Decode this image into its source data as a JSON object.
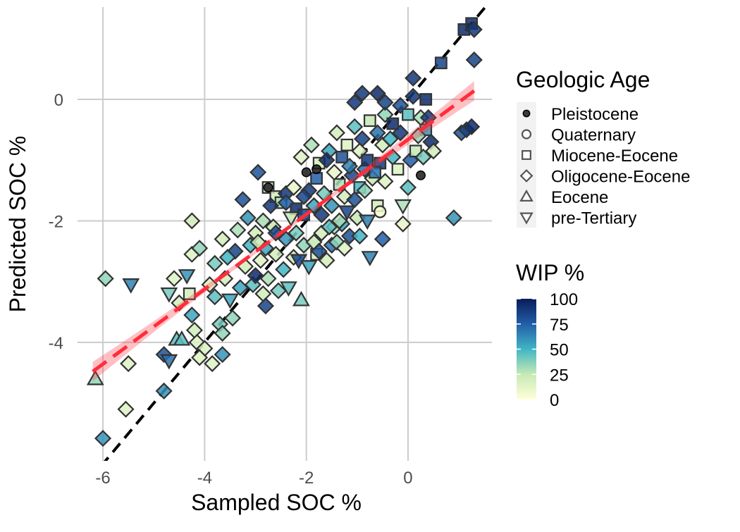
{
  "chart_data": {
    "type": "scatter",
    "xlabel": "Sampled SOC %",
    "ylabel": "Predicted SOC %",
    "xlim": [
      -6.5,
      1.65
    ],
    "ylim": [
      -5.95,
      1.52
    ],
    "x_ticks": [
      -6,
      -4,
      -2,
      0
    ],
    "y_ticks": [
      0,
      -2,
      -4
    ],
    "x_tick_labels": [
      "-6",
      "-4",
      "-2",
      "0"
    ],
    "y_tick_labels": [
      "0",
      "-2",
      "-4"
    ],
    "grid": true,
    "identity_line": {
      "x": [
        -6.5,
        1.65
      ],
      "y": [
        -6.5,
        1.65
      ],
      "color": "#000000",
      "dash": true
    },
    "regression_line": {
      "x": [
        -6.2,
        1.3
      ],
      "y": [
        -4.48,
        0.14
      ],
      "ci_halfwidth_ends": 0.16,
      "ci_halfwidth_mid": 0.03,
      "color": "#ff2d3a"
    },
    "shape_legend": {
      "title": "Geologic Age",
      "position": "right",
      "entries": [
        {
          "label": "Pleistocene",
          "shape": "filled-circle"
        },
        {
          "label": "Quaternary",
          "shape": "circle"
        },
        {
          "label": "Miocene-Eocene",
          "shape": "square"
        },
        {
          "label": "Oligocene-Eocene",
          "shape": "diamond"
        },
        {
          "label": "Eocene",
          "shape": "triangle-up"
        },
        {
          "label": "pre-Tertiary",
          "shape": "triangle-down"
        }
      ]
    },
    "color_legend": {
      "title": "WIP %",
      "position": "right",
      "ticks": [
        100,
        75,
        50,
        25,
        0
      ],
      "tick_labels": [
        "100",
        "75",
        "50",
        "25",
        "0"
      ],
      "range": [
        0,
        100
      ],
      "gradient": [
        "#ffffd9",
        "#c7e9b4",
        "#41b6c4",
        "#225ea8",
        "#081d58"
      ]
    },
    "points": [
      {
        "x": -6.0,
        "y": -5.58,
        "shape": "diamond",
        "wip": 60
      },
      {
        "x": -6.15,
        "y": -4.6,
        "shape": "triangle-up",
        "wip": 35
      },
      {
        "x": -5.95,
        "y": -2.95,
        "shape": "diamond",
        "wip": 35
      },
      {
        "x": -5.45,
        "y": -3.05,
        "shape": "triangle-down",
        "wip": 65
      },
      {
        "x": -5.5,
        "y": -4.35,
        "shape": "diamond",
        "wip": 15
      },
      {
        "x": -5.55,
        "y": -5.1,
        "shape": "diamond",
        "wip": 15
      },
      {
        "x": -4.8,
        "y": -4.8,
        "shape": "diamond",
        "wip": 60
      },
      {
        "x": -4.8,
        "y": -4.2,
        "shape": "diamond",
        "wip": 80
      },
      {
        "x": -4.7,
        "y": -4.3,
        "shape": "triangle-down",
        "wip": 70
      },
      {
        "x": -4.55,
        "y": -3.95,
        "shape": "triangle-up",
        "wip": 45
      },
      {
        "x": -4.45,
        "y": -3.95,
        "shape": "triangle-up",
        "wip": 45
      },
      {
        "x": -4.5,
        "y": -3.35,
        "shape": "diamond",
        "wip": 20
      },
      {
        "x": -4.7,
        "y": -3.2,
        "shape": "triangle-down",
        "wip": 40
      },
      {
        "x": -4.3,
        "y": -3.2,
        "shape": "square",
        "wip": 20
      },
      {
        "x": -4.6,
        "y": -2.95,
        "shape": "diamond",
        "wip": 15
      },
      {
        "x": -4.35,
        "y": -2.9,
        "shape": "triangle-down",
        "wip": 60
      },
      {
        "x": -4.25,
        "y": -2.55,
        "shape": "diamond",
        "wip": 15
      },
      {
        "x": -4.25,
        "y": -2.0,
        "shape": "diamond",
        "wip": 20
      },
      {
        "x": -4.1,
        "y": -2.45,
        "shape": "diamond",
        "wip": 35
      },
      {
        "x": -4.25,
        "y": -3.55,
        "shape": "diamond",
        "wip": 55
      },
      {
        "x": -4.2,
        "y": -3.8,
        "shape": "diamond",
        "wip": 20
      },
      {
        "x": -4.15,
        "y": -4.0,
        "shape": "diamond",
        "wip": 15
      },
      {
        "x": -4.0,
        "y": -4.1,
        "shape": "diamond",
        "wip": 15
      },
      {
        "x": -4.1,
        "y": -4.25,
        "shape": "diamond",
        "wip": 15
      },
      {
        "x": -3.85,
        "y": -4.35,
        "shape": "diamond",
        "wip": 15
      },
      {
        "x": -3.65,
        "y": -4.2,
        "shape": "diamond",
        "wip": 60
      },
      {
        "x": -3.9,
        "y": -3.05,
        "shape": "diamond",
        "wip": 15
      },
      {
        "x": -3.8,
        "y": -3.25,
        "shape": "diamond",
        "wip": 45
      },
      {
        "x": -3.7,
        "y": -3.7,
        "shape": "diamond",
        "wip": 40
      },
      {
        "x": -3.65,
        "y": -3.85,
        "shape": "diamond",
        "wip": 35
      },
      {
        "x": -3.45,
        "y": -3.6,
        "shape": "diamond",
        "wip": 35
      },
      {
        "x": -3.5,
        "y": -3.3,
        "shape": "triangle-down",
        "wip": 55
      },
      {
        "x": -3.6,
        "y": -2.95,
        "shape": "diamond",
        "wip": 20
      },
      {
        "x": -3.8,
        "y": -2.7,
        "shape": "diamond",
        "wip": 40
      },
      {
        "x": -3.65,
        "y": -2.3,
        "shape": "diamond",
        "wip": 20
      },
      {
        "x": -3.35,
        "y": -2.15,
        "shape": "diamond",
        "wip": 30
      },
      {
        "x": -3.1,
        "y": -2.4,
        "shape": "diamond",
        "wip": 50
      },
      {
        "x": -3.3,
        "y": -3.1,
        "shape": "diamond",
        "wip": 55
      },
      {
        "x": -3.05,
        "y": -3.05,
        "shape": "diamond",
        "wip": 45
      },
      {
        "x": -3.2,
        "y": -2.75,
        "shape": "diamond",
        "wip": 20
      },
      {
        "x": -3.0,
        "y": -2.2,
        "shape": "diamond",
        "wip": 20
      },
      {
        "x": -2.85,
        "y": -2.0,
        "shape": "diamond",
        "wip": 30
      },
      {
        "x": -3.15,
        "y": -1.95,
        "shape": "diamond",
        "wip": 60
      },
      {
        "x": -3.25,
        "y": -1.65,
        "shape": "diamond",
        "wip": 80
      },
      {
        "x": -2.95,
        "y": -1.2,
        "shape": "diamond",
        "wip": 80
      },
      {
        "x": -2.75,
        "y": -1.45,
        "shape": "square",
        "wip": 20
      },
      {
        "x": -2.6,
        "y": -1.6,
        "shape": "square",
        "wip": 20
      },
      {
        "x": -2.5,
        "y": -1.7,
        "shape": "square",
        "wip": 30
      },
      {
        "x": -2.4,
        "y": -1.55,
        "shape": "diamond",
        "wip": 90
      },
      {
        "x": -2.7,
        "y": -1.75,
        "shape": "diamond",
        "wip": 90
      },
      {
        "x": -2.65,
        "y": -2.1,
        "shape": "diamond",
        "wip": 25
      },
      {
        "x": -2.8,
        "y": -2.45,
        "shape": "diamond",
        "wip": 55
      },
      {
        "x": -2.6,
        "y": -2.55,
        "shape": "diamond",
        "wip": 20
      },
      {
        "x": -2.9,
        "y": -2.65,
        "shape": "diamond",
        "wip": 15
      },
      {
        "x": -2.75,
        "y": -2.95,
        "shape": "diamond",
        "wip": 30
      },
      {
        "x": -2.85,
        "y": -3.2,
        "shape": "diamond",
        "wip": 20
      },
      {
        "x": -2.8,
        "y": -3.4,
        "shape": "diamond",
        "wip": 85
      },
      {
        "x": -2.55,
        "y": -3.15,
        "shape": "diamond",
        "wip": 40
      },
      {
        "x": -2.45,
        "y": -2.8,
        "shape": "diamond",
        "wip": 50
      },
      {
        "x": -2.35,
        "y": -3.1,
        "shape": "triangle-down",
        "wip": 45
      },
      {
        "x": -2.25,
        "y": -2.6,
        "shape": "diamond",
        "wip": 20
      },
      {
        "x": -2.4,
        "y": -2.3,
        "shape": "diamond",
        "wip": 60
      },
      {
        "x": -2.2,
        "y": -2.2,
        "shape": "diamond",
        "wip": 40
      },
      {
        "x": -2.05,
        "y": -2.4,
        "shape": "diamond",
        "wip": 35
      },
      {
        "x": -2.1,
        "y": -3.3,
        "shape": "triangle-up",
        "wip": 40
      },
      {
        "x": -1.95,
        "y": -2.75,
        "shape": "triangle-down",
        "wip": 55
      },
      {
        "x": -1.8,
        "y": -2.55,
        "shape": "square",
        "wip": 20
      },
      {
        "x": -1.6,
        "y": -2.65,
        "shape": "diamond",
        "wip": 20
      },
      {
        "x": -1.7,
        "y": -2.2,
        "shape": "diamond",
        "wip": 20
      },
      {
        "x": -1.5,
        "y": -2.4,
        "shape": "diamond",
        "wip": 70
      },
      {
        "x": -1.45,
        "y": -2.1,
        "shape": "diamond",
        "wip": 30
      },
      {
        "x": -1.3,
        "y": -2.05,
        "shape": "diamond",
        "wip": 55
      },
      {
        "x": -1.15,
        "y": -2.25,
        "shape": "diamond",
        "wip": 80
      },
      {
        "x": -1.0,
        "y": -1.95,
        "shape": "diamond",
        "wip": 25
      },
      {
        "x": -0.8,
        "y": -2.0,
        "shape": "triangle-down",
        "wip": 65
      },
      {
        "x": -0.6,
        "y": -1.75,
        "shape": "square",
        "wip": 20
      },
      {
        "x": -0.55,
        "y": -1.85,
        "shape": "circle",
        "wip": 5
      },
      {
        "x": -0.75,
        "y": -2.6,
        "shape": "triangle-down",
        "wip": 65
      },
      {
        "x": -0.1,
        "y": -2.05,
        "shape": "diamond",
        "wip": 10
      },
      {
        "x": -0.1,
        "y": -1.75,
        "shape": "triangle-down",
        "wip": 30
      },
      {
        "x": 0.0,
        "y": -1.45,
        "shape": "diamond",
        "wip": 45
      },
      {
        "x": 0.9,
        "y": -1.95,
        "shape": "diamond",
        "wip": 60
      },
      {
        "x": -2.2,
        "y": -1.8,
        "shape": "square",
        "wip": 95
      },
      {
        "x": -2.05,
        "y": -1.9,
        "shape": "square",
        "wip": 85
      },
      {
        "x": -1.95,
        "y": -1.5,
        "shape": "diamond",
        "wip": 90
      },
      {
        "x": -1.8,
        "y": -1.3,
        "shape": "square",
        "wip": 75
      },
      {
        "x": -1.65,
        "y": -1.55,
        "shape": "diamond",
        "wip": 40
      },
      {
        "x": -1.5,
        "y": -1.75,
        "shape": "diamond",
        "wip": 60
      },
      {
        "x": -1.35,
        "y": -1.4,
        "shape": "square",
        "wip": 30
      },
      {
        "x": -1.25,
        "y": -1.6,
        "shape": "diamond",
        "wip": 20
      },
      {
        "x": -1.1,
        "y": -1.25,
        "shape": "diamond",
        "wip": 85
      },
      {
        "x": -0.95,
        "y": -1.45,
        "shape": "square",
        "wip": 50
      },
      {
        "x": -0.85,
        "y": -1.15,
        "shape": "diamond",
        "wip": 70
      },
      {
        "x": -0.7,
        "y": -1.3,
        "shape": "diamond",
        "wip": 25
      },
      {
        "x": -0.55,
        "y": -1.05,
        "shape": "square",
        "wip": 90
      },
      {
        "x": -0.45,
        "y": -1.35,
        "shape": "diamond",
        "wip": 15
      },
      {
        "x": -0.3,
        "y": -0.95,
        "shape": "diamond",
        "wip": 50
      },
      {
        "x": -0.2,
        "y": -1.15,
        "shape": "square",
        "wip": 15
      },
      {
        "x": 0.05,
        "y": -1.0,
        "shape": "diamond",
        "wip": 75
      },
      {
        "x": 0.15,
        "y": -0.85,
        "shape": "square",
        "wip": 25
      },
      {
        "x": 0.3,
        "y": -0.95,
        "shape": "diamond",
        "wip": 40
      },
      {
        "x": 0.45,
        "y": -0.7,
        "shape": "diamond",
        "wip": 95
      },
      {
        "x": 0.35,
        "y": -0.5,
        "shape": "square",
        "wip": 60
      },
      {
        "x": 0.5,
        "y": -0.85,
        "shape": "diamond",
        "wip": 20
      },
      {
        "x": 0.25,
        "y": -0.3,
        "shape": "diamond",
        "wip": 30
      },
      {
        "x": -2.1,
        "y": -0.95,
        "shape": "diamond",
        "wip": 15
      },
      {
        "x": -1.9,
        "y": -0.75,
        "shape": "diamond",
        "wip": 30
      },
      {
        "x": -1.75,
        "y": -1.05,
        "shape": "square",
        "wip": 20
      },
      {
        "x": -1.55,
        "y": -0.85,
        "shape": "diamond",
        "wip": 55
      },
      {
        "x": -1.4,
        "y": -0.55,
        "shape": "diamond",
        "wip": 20
      },
      {
        "x": -1.2,
        "y": -0.75,
        "shape": "square",
        "wip": 15
      },
      {
        "x": -1.05,
        "y": -0.45,
        "shape": "diamond",
        "wip": 45
      },
      {
        "x": -0.9,
        "y": -0.65,
        "shape": "diamond",
        "wip": 85
      },
      {
        "x": -0.75,
        "y": -0.35,
        "shape": "square",
        "wip": 25
      },
      {
        "x": -0.6,
        "y": -0.55,
        "shape": "diamond",
        "wip": 70
      },
      {
        "x": -0.45,
        "y": -0.25,
        "shape": "diamond",
        "wip": 35
      },
      {
        "x": -0.3,
        "y": -0.4,
        "shape": "square",
        "wip": 95
      },
      {
        "x": -0.15,
        "y": -0.1,
        "shape": "diamond",
        "wip": 80
      },
      {
        "x": 0.0,
        "y": -0.25,
        "shape": "square",
        "wip": 45
      },
      {
        "x": -1.05,
        "y": -0.05,
        "shape": "diamond",
        "wip": 90
      },
      {
        "x": -0.9,
        "y": 0.1,
        "shape": "diamond",
        "wip": 90
      },
      {
        "x": -0.6,
        "y": 0.1,
        "shape": "diamond",
        "wip": 95
      },
      {
        "x": -0.45,
        "y": -0.05,
        "shape": "diamond",
        "wip": 85
      },
      {
        "x": 0.1,
        "y": 0.05,
        "shape": "diamond",
        "wip": 90
      },
      {
        "x": 0.1,
        "y": 0.35,
        "shape": "diamond",
        "wip": 90
      },
      {
        "x": 0.35,
        "y": 0.0,
        "shape": "square",
        "wip": 95
      },
      {
        "x": 0.65,
        "y": 0.6,
        "shape": "square",
        "wip": 85
      },
      {
        "x": 1.05,
        "y": -0.55,
        "shape": "diamond",
        "wip": 80
      },
      {
        "x": 1.15,
        "y": -0.5,
        "shape": "diamond",
        "wip": 85
      },
      {
        "x": 1.25,
        "y": -0.45,
        "shape": "diamond",
        "wip": 95
      },
      {
        "x": 1.1,
        "y": 1.15,
        "shape": "square",
        "wip": 95
      },
      {
        "x": 1.25,
        "y": 1.25,
        "shape": "square",
        "wip": 95
      },
      {
        "x": 1.3,
        "y": 1.15,
        "shape": "diamond",
        "wip": 90
      },
      {
        "x": 1.3,
        "y": 0.65,
        "shape": "diamond",
        "wip": 85
      },
      {
        "x": -2.0,
        "y": -1.2,
        "shape": "filled-circle",
        "wip": 100
      },
      {
        "x": -1.8,
        "y": -1.15,
        "shape": "filled-circle",
        "wip": 100
      },
      {
        "x": 0.25,
        "y": -1.25,
        "shape": "filled-circle",
        "wip": 100
      },
      {
        "x": -2.75,
        "y": -1.45,
        "shape": "filled-circle",
        "wip": 100
      },
      {
        "x": -2.4,
        "y": -1.7,
        "shape": "diamond",
        "wip": 75
      },
      {
        "x": -2.25,
        "y": -1.45,
        "shape": "diamond",
        "wip": 10
      },
      {
        "x": -2.05,
        "y": -1.6,
        "shape": "diamond",
        "wip": 85
      },
      {
        "x": -1.85,
        "y": -1.75,
        "shape": "diamond",
        "wip": 55
      },
      {
        "x": -1.7,
        "y": -1.9,
        "shape": "diamond",
        "wip": 90
      },
      {
        "x": -1.55,
        "y": -2.1,
        "shape": "diamond",
        "wip": 45
      },
      {
        "x": -1.35,
        "y": -2.0,
        "shape": "diamond",
        "wip": 30
      },
      {
        "x": -1.2,
        "y": -1.85,
        "shape": "triangle-down",
        "wip": 85
      },
      {
        "x": -1.05,
        "y": -1.65,
        "shape": "diamond",
        "wip": 80
      },
      {
        "x": -0.85,
        "y": -1.5,
        "shape": "diamond",
        "wip": 35
      },
      {
        "x": -0.65,
        "y": -1.2,
        "shape": "square",
        "wip": 70
      },
      {
        "x": -0.5,
        "y": -0.75,
        "shape": "diamond",
        "wip": 20
      },
      {
        "x": -1.6,
        "y": -1.0,
        "shape": "diamond",
        "wip": 95
      },
      {
        "x": -1.45,
        "y": -1.2,
        "shape": "diamond",
        "wip": 10
      },
      {
        "x": -1.3,
        "y": -0.95,
        "shape": "square",
        "wip": 80
      },
      {
        "x": -1.15,
        "y": -1.1,
        "shape": "diamond",
        "wip": 65
      },
      {
        "x": -0.95,
        "y": -0.85,
        "shape": "diamond",
        "wip": 15
      },
      {
        "x": -0.8,
        "y": -1.0,
        "shape": "square",
        "wip": 90
      },
      {
        "x": -0.35,
        "y": -0.65,
        "shape": "diamond",
        "wip": 50
      },
      {
        "x": -0.15,
        "y": -0.55,
        "shape": "diamond",
        "wip": 90
      },
      {
        "x": 0.2,
        "y": -0.6,
        "shape": "diamond",
        "wip": 35
      },
      {
        "x": 0.4,
        "y": -0.3,
        "shape": "diamond",
        "wip": 90
      },
      {
        "x": -3.4,
        "y": -2.5,
        "shape": "diamond",
        "wip": 85
      },
      {
        "x": -3.55,
        "y": -2.6,
        "shape": "diamond",
        "wip": 50
      },
      {
        "x": -3.0,
        "y": -2.9,
        "shape": "diamond",
        "wip": 95
      },
      {
        "x": -2.95,
        "y": -2.35,
        "shape": "diamond",
        "wip": 25
      },
      {
        "x": -2.6,
        "y": -2.2,
        "shape": "diamond",
        "wip": 85
      },
      {
        "x": -2.3,
        "y": -1.95,
        "shape": "triangle-down",
        "wip": 25
      },
      {
        "x": -2.15,
        "y": -2.65,
        "shape": "triangle-down",
        "wip": 85
      },
      {
        "x": -1.85,
        "y": -2.35,
        "shape": "diamond",
        "wip": 25
      },
      {
        "x": -1.75,
        "y": -2.5,
        "shape": "diamond",
        "wip": 80
      },
      {
        "x": -1.4,
        "y": -2.35,
        "shape": "diamond",
        "wip": 35
      },
      {
        "x": -1.25,
        "y": -2.45,
        "shape": "diamond",
        "wip": 15
      },
      {
        "x": -0.95,
        "y": -2.25,
        "shape": "diamond",
        "wip": 50
      },
      {
        "x": -0.5,
        "y": -2.3,
        "shape": "diamond",
        "wip": 75
      }
    ]
  }
}
